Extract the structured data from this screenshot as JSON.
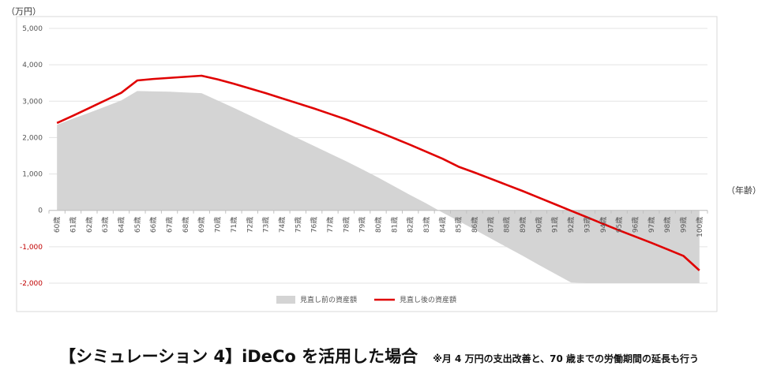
{
  "chart_data": {
    "type": "area",
    "y_unit_label": "（万円）",
    "x_unit_label": "（年齢）",
    "ylim": [
      -2000,
      5000
    ],
    "y_ticks": [
      5000,
      4000,
      3000,
      2000,
      1000,
      0,
      -1000,
      -2000
    ],
    "y_tick_labels": [
      "5,000",
      "4,000",
      "3,000",
      "2,000",
      "1,000",
      "0",
      "-1,000",
      "-2,000"
    ],
    "categories": [
      "60歳",
      "61歳",
      "62歳",
      "63歳",
      "64歳",
      "65歳",
      "66歳",
      "67歳",
      "68歳",
      "69歳",
      "70歳",
      "71歳",
      "72歳",
      "73歳",
      "74歳",
      "75歳",
      "76歳",
      "77歳",
      "78歳",
      "79歳",
      "80歳",
      "81歳",
      "82歳",
      "83歳",
      "84歳",
      "85歳",
      "86歳",
      "87歳",
      "88歳",
      "89歳",
      "90歳",
      "91歳",
      "92歳",
      "93歳",
      "94歳",
      "95歳",
      "96歳",
      "97歳",
      "98歳",
      "99歳",
      "100歳"
    ],
    "grid": true,
    "legend_position": "bottom",
    "series": [
      {
        "name": "見直し前の資産額",
        "kind": "area",
        "color": "#d4d4d4",
        "values": [
          2350,
          2520,
          2680,
          2850,
          3020,
          3280,
          3270,
          3260,
          3240,
          3220,
          3020,
          2820,
          2610,
          2400,
          2190,
          1980,
          1770,
          1560,
          1350,
          1130,
          900,
          660,
          420,
          190,
          -60,
          -290,
          -530,
          -770,
          -1010,
          -1250,
          -1500,
          -1740,
          -1980,
          -2000,
          -2000,
          -2000,
          -2000,
          -2000,
          -2000,
          -2000,
          -2000
        ]
      },
      {
        "name": "見直し後の資産額",
        "kind": "line",
        "color": "#e00000",
        "values": [
          2400,
          2600,
          2810,
          3020,
          3230,
          3570,
          3610,
          3640,
          3670,
          3700,
          3600,
          3480,
          3350,
          3220,
          3080,
          2940,
          2800,
          2650,
          2500,
          2330,
          2160,
          1980,
          1800,
          1610,
          1420,
          1200,
          1040,
          870,
          700,
          530,
          350,
          170,
          -10,
          -190,
          -370,
          -550,
          -720,
          -890,
          -1070,
          -1250,
          -1650
        ]
      }
    ]
  },
  "caption": {
    "main": "【シミュレーション 4】iDeCo を活用した場合",
    "note": "※月 4 万円の支出改善と、70 歳までの労働期間の延長も行う"
  }
}
